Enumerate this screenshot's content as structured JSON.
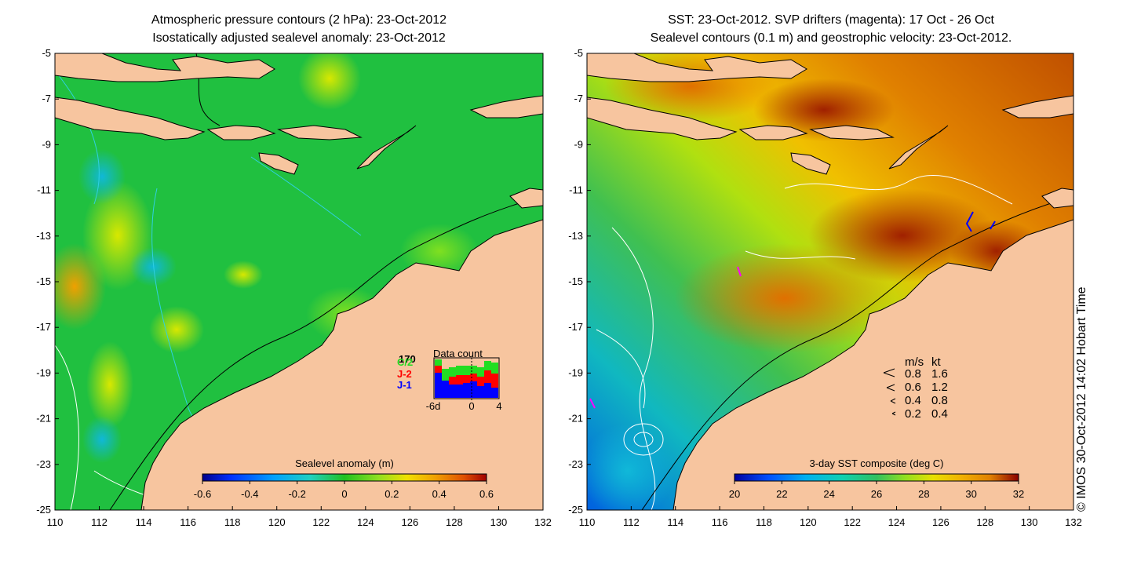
{
  "left_panel": {
    "title_line1": "Atmospheric pressure contours (2 hPa): 23-Oct-2012",
    "title_line2": "Isostatically adjusted sealevel anomaly: 23-Oct-2012",
    "x_ticks": [
      "110",
      "112",
      "114",
      "116",
      "118",
      "120",
      "122",
      "124",
      "126",
      "128",
      "130",
      "132"
    ],
    "y_ticks": [
      "-5",
      "-7",
      "-9",
      "-11",
      "-13",
      "-15",
      "-17",
      "-19",
      "-21",
      "-23",
      "-25"
    ],
    "colorbar": {
      "label": "Sealevel anomaly (m)",
      "ticks": [
        "-0.6",
        "-0.4",
        "-0.2",
        "0",
        "0.2",
        "0.4",
        "0.6"
      ]
    },
    "data_count": {
      "title": "Data count",
      "max_label": "170",
      "x_ticks": [
        "-6d",
        "0",
        "4"
      ],
      "legend": [
        {
          "label": "C/2",
          "color": "#22dd22"
        },
        {
          "label": "J-2",
          "color": "#ff0000"
        },
        {
          "label": "J-1",
          "color": "#0000ff"
        }
      ]
    }
  },
  "right_panel": {
    "title_line1": "SST: 23-Oct-2012. SVP drifters (magenta): 17 Oct - 26 Oct",
    "title_line2": "Sealevel contours (0.1 m) and geostrophic velocity: 23-Oct-2012.",
    "x_ticks": [
      "110",
      "112",
      "114",
      "116",
      "118",
      "120",
      "122",
      "124",
      "126",
      "128",
      "130",
      "132"
    ],
    "y_ticks": [
      "-5",
      "-7",
      "-9",
      "-11",
      "-13",
      "-15",
      "-17",
      "-19",
      "-21",
      "-23",
      "-25"
    ],
    "colorbar": {
      "label": "3-day SST composite (deg C)",
      "ticks": [
        "20",
        "22",
        "24",
        "26",
        "28",
        "30",
        "32"
      ]
    },
    "velocity_legend": {
      "header_ms": "m/s",
      "header_kt": "kt",
      "rows": [
        {
          "ms": "0.8",
          "kt": "1.6"
        },
        {
          "ms": "0.6",
          "kt": "1.2"
        },
        {
          "ms": "0.4",
          "kt": "0.8"
        },
        {
          "ms": "0.2",
          "kt": "0.4"
        }
      ]
    }
  },
  "credit": "© IMOS 30-Oct-2012 14:02 Hobart Time",
  "colors": {
    "land": "#f7c59f",
    "coast": "#000000",
    "sla_scale": [
      "#00008b",
      "#0030ff",
      "#00a0ff",
      "#20d0c0",
      "#40c050",
      "#20c020",
      "#90e020",
      "#f0e000",
      "#f0a000",
      "#e05000",
      "#a00000"
    ],
    "sst_scale": [
      "#0000a0",
      "#0050ff",
      "#00b0f0",
      "#10d0b0",
      "#30c060",
      "#90e020",
      "#e8e000",
      "#f0b000",
      "#e08000",
      "#c04000",
      "#8b0000"
    ]
  }
}
